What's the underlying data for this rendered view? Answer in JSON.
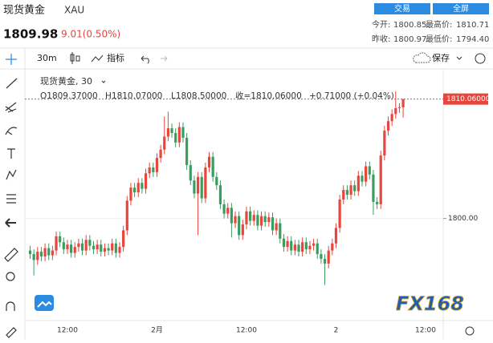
{
  "header": {
    "name": "现货黄金",
    "symbol": "XAU",
    "price": "1809.98",
    "change": "9.01(0.50%)",
    "buttons": [
      "交易",
      "全屏"
    ],
    "stats": [
      [
        "今开:",
        "1800.85",
        "最高价:",
        "1810.71"
      ],
      [
        "昨收:",
        "1800.97",
        "最低价:",
        "1794.40"
      ]
    ]
  },
  "toolbar": {
    "interval": "30m",
    "indicators": "指标",
    "save": "保存"
  },
  "watermark": "FX168",
  "chart_data": {
    "type": "candlestick",
    "title": "现货黄金, 30",
    "ohlc_legend": [
      "O1809.37000",
      "H1810.07000",
      "L1808.50000",
      "收=1810.06000",
      "+0.71000 (+0.04%)"
    ],
    "categories": [
      null,
      null,
      null,
      null,
      null,
      null,
      null,
      null,
      null,
      null,
      "12:00",
      null,
      null,
      null,
      null,
      null,
      null,
      null,
      null,
      null,
      null,
      null,
      null,
      null,
      null,
      null,
      null,
      null,
      null,
      null,
      null,
      null,
      null,
      null,
      "2月",
      null,
      null,
      null,
      null,
      null,
      null,
      null,
      null,
      null,
      null,
      null,
      null,
      null,
      null,
      null,
      null,
      null,
      null,
      null,
      null,
      null,
      null,
      null,
      "12:00",
      null,
      null,
      null,
      null,
      null,
      null,
      null,
      null,
      null,
      null,
      null,
      null,
      null,
      null,
      null,
      null,
      null,
      null,
      null,
      null,
      null,
      null,
      null,
      "2",
      null,
      null,
      null,
      null,
      null,
      null,
      null,
      null,
      null,
      null,
      null,
      null,
      null,
      null,
      null,
      null,
      null,
      null,
      null,
      null,
      null,
      null,
      null,
      "12:00",
      null,
      null,
      null,
      null
    ],
    "open": [
      1797.3,
      1797.0,
      1796.5,
      1797.2,
      1796.8,
      1797.5,
      1796.9,
      1797.3,
      1798.5,
      1798.0,
      1797.4,
      1797.8,
      1797.1,
      1797.6,
      1797.9,
      1797.3,
      1798.2,
      1797.7,
      1797.4,
      1797.8,
      1797.2,
      1797.5,
      1797.3,
      1797.9,
      1797.1,
      1797.6,
      1799.0,
      1801.5,
      1802.6,
      1802.2,
      1803.0,
      1802.5,
      1803.8,
      1804.3,
      1803.9,
      1805.1,
      1805.8,
      1806.9,
      1807.6,
      1807.2,
      1806.4,
      1807.7,
      1806.8,
      1804.5,
      1803.2,
      1802.1,
      1803.5,
      1801.7,
      1804.3,
      1805.2,
      1803.5,
      1802.8,
      1801.2,
      1800.4,
      1800.9,
      1799.6,
      1800.2,
      1798.6,
      1799.5,
      1800.6,
      1799.8,
      1800.3,
      1799.4,
      1800.2,
      1799.7,
      1800.1,
      1799.0,
      1799.6,
      1798.3,
      1797.6,
      1798.1,
      1797.3,
      1797.8,
      1797.2,
      1798.0,
      1797.4,
      1797.7,
      1797.9,
      1797.0,
      1796.6,
      1796.2,
      1797.3,
      1797.9,
      1799.2,
      1801.6,
      1802.4,
      1802.0,
      1802.8,
      1802.3,
      1803.6,
      1803.1,
      1804.4,
      1803.7,
      1801.4,
      1801.2,
      1805.3,
      1807.4,
      1808.2,
      1808.8,
      1809.3,
      1809.37,
      null,
      null,
      null,
      null,
      null,
      null,
      null,
      null,
      null,
      null
    ],
    "high": [
      1797.7,
      1797.4,
      1797.6,
      1797.6,
      1797.9,
      1797.9,
      1797.7,
      1798.9,
      1798.9,
      1798.4,
      1798.2,
      1798.2,
      1798.0,
      1798.3,
      1798.3,
      1798.6,
      1798.6,
      1798.1,
      1798.2,
      1798.2,
      1797.9,
      1797.9,
      1798.3,
      1798.3,
      1798.0,
      1799.4,
      1801.9,
      1803.0,
      1803.0,
      1803.4,
      1803.4,
      1804.2,
      1804.7,
      1804.7,
      1805.5,
      1806.2,
      1808.6,
      1809.0,
      1808.0,
      1807.6,
      1808.1,
      1808.1,
      1807.2,
      1804.9,
      1803.6,
      1803.9,
      1803.9,
      1804.7,
      1805.6,
      1805.6,
      1803.9,
      1803.2,
      1801.6,
      1801.3,
      1801.3,
      1800.6,
      1800.6,
      1799.9,
      1801.0,
      1801.0,
      1800.7,
      1800.7,
      1800.6,
      1800.6,
      1800.5,
      1800.5,
      1800.0,
      1800.0,
      1798.7,
      1798.5,
      1798.5,
      1798.2,
      1798.2,
      1798.4,
      1798.4,
      1798.1,
      1798.3,
      1798.3,
      1797.4,
      1797.0,
      1797.7,
      1798.3,
      1799.6,
      1802.0,
      1802.8,
      1802.8,
      1803.2,
      1803.2,
      1804.0,
      1804.0,
      1804.8,
      1804.8,
      1804.1,
      1801.8,
      1805.7,
      1807.8,
      1808.6,
      1809.2,
      1810.71,
      1809.7,
      1810.07,
      null,
      null,
      null,
      null,
      null,
      null,
      null,
      null,
      null,
      null
    ],
    "low": [
      1796.6,
      1795.2,
      1796.1,
      1796.4,
      1796.4,
      1796.5,
      1796.5,
      1796.9,
      1797.6,
      1797.0,
      1797.0,
      1796.7,
      1796.7,
      1797.2,
      1796.9,
      1796.9,
      1797.3,
      1797.0,
      1797.0,
      1796.8,
      1796.8,
      1796.9,
      1796.9,
      1796.7,
      1796.7,
      1797.2,
      1798.6,
      1801.1,
      1801.8,
      1801.8,
      1802.1,
      1802.1,
      1803.4,
      1803.5,
      1803.5,
      1804.7,
      1805.4,
      1806.5,
      1806.8,
      1806.0,
      1806.0,
      1806.4,
      1804.1,
      1802.8,
      1801.7,
      1798.6,
      1801.3,
      1801.3,
      1803.9,
      1803.1,
      1802.4,
      1800.8,
      1800.0,
      1800.0,
      1798.4,
      1799.2,
      1798.2,
      1798.2,
      1799.1,
      1799.4,
      1799.4,
      1799.0,
      1799.0,
      1799.3,
      1799.3,
      1798.6,
      1798.6,
      1797.9,
      1797.2,
      1797.2,
      1796.9,
      1796.9,
      1796.8,
      1796.8,
      1797.0,
      1797.0,
      1797.3,
      1796.6,
      1796.2,
      1794.4,
      1795.8,
      1796.9,
      1797.5,
      1798.8,
      1801.2,
      1801.6,
      1801.6,
      1801.9,
      1801.9,
      1802.7,
      1802.7,
      1803.3,
      1800.3,
      1800.8,
      1800.8,
      1804.9,
      1807.0,
      1807.8,
      1808.4,
      1808.9,
      1808.5,
      null,
      null,
      null,
      null,
      null,
      null,
      null,
      null,
      null,
      null
    ],
    "close": [
      1797.0,
      1796.5,
      1797.2,
      1796.8,
      1797.5,
      1796.9,
      1797.3,
      1798.5,
      1798.0,
      1797.4,
      1797.8,
      1797.1,
      1797.6,
      1797.9,
      1797.3,
      1798.2,
      1797.7,
      1797.4,
      1797.8,
      1797.2,
      1797.5,
      1797.3,
      1797.9,
      1797.1,
      1797.6,
      1799.0,
      1801.5,
      1802.6,
      1802.2,
      1803.0,
      1802.5,
      1803.8,
      1804.3,
      1803.9,
      1805.1,
      1805.8,
      1806.9,
      1807.6,
      1807.2,
      1806.4,
      1807.7,
      1806.8,
      1804.5,
      1803.2,
      1802.1,
      1803.5,
      1801.7,
      1804.3,
      1805.2,
      1803.5,
      1802.8,
      1801.2,
      1800.4,
      1800.9,
      1799.6,
      1800.2,
      1798.6,
      1799.5,
      1800.6,
      1799.8,
      1800.3,
      1799.4,
      1800.2,
      1799.7,
      1800.1,
      1799.0,
      1799.6,
      1798.3,
      1797.6,
      1798.1,
      1797.3,
      1797.8,
      1797.2,
      1798.0,
      1797.4,
      1797.7,
      1797.9,
      1797.0,
      1796.6,
      1796.2,
      1797.3,
      1797.9,
      1799.2,
      1801.6,
      1802.4,
      1802.0,
      1802.8,
      1802.3,
      1803.6,
      1803.1,
      1804.4,
      1803.7,
      1801.4,
      1801.2,
      1805.3,
      1807.4,
      1808.2,
      1808.8,
      1809.3,
      1809.37,
      1810.06,
      null,
      null,
      null,
      null,
      null,
      null,
      null,
      null,
      null,
      null
    ],
    "up_color": "#e8453c",
    "down_color": "#3a9d60",
    "ylim": [
      1791.4,
      1812.6
    ],
    "yticks": [
      {
        "value": 1800,
        "label": "1800.00"
      }
    ],
    "last_price": {
      "value": 1810.06,
      "label": "1810.06000"
    }
  }
}
